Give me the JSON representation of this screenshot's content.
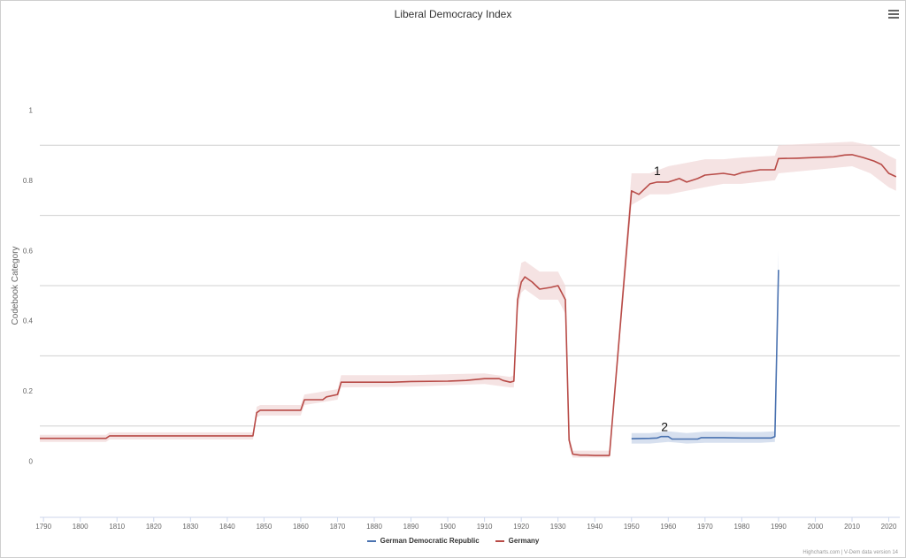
{
  "chart_data": {
    "type": "line",
    "title": "Liberal Democracy Index",
    "ylabel": "Codebook Category",
    "xlabel": "",
    "xlim": [
      1789,
      2023
    ],
    "ylim": [
      -0.16,
      1.16
    ],
    "yticks": [
      0,
      0.2,
      0.4,
      0.6,
      0.8,
      1
    ],
    "ytick_labels": [
      "0",
      "0.2",
      "0.4",
      "0.6",
      "0.8",
      "1"
    ],
    "ygridlines": [
      0.1,
      0.3,
      0.5,
      0.7,
      0.9
    ],
    "xticks": [
      1790,
      1800,
      1810,
      1820,
      1830,
      1840,
      1850,
      1860,
      1870,
      1880,
      1890,
      1900,
      1910,
      1920,
      1930,
      1940,
      1950,
      1960,
      1970,
      1980,
      1990,
      2000,
      2010,
      2020
    ],
    "xtick_labels": [
      "1790",
      "1800",
      "1810",
      "1820",
      "1830",
      "1840",
      "1850",
      "1860",
      "1870",
      "1880",
      "1890",
      "1900",
      "1910",
      "1920",
      "1930",
      "1940",
      "1950",
      "1960",
      "1970",
      "1980",
      "1990",
      "2000",
      "2010",
      "2020"
    ],
    "grid": true,
    "legend_placement": "bottom-center",
    "series": [
      {
        "name": "German Democratic Republic",
        "color": "#4a72b0",
        "band_color": "#c9d6ea",
        "points": [
          [
            1950,
            0.064
          ],
          [
            1955,
            0.065
          ],
          [
            1957,
            0.066
          ],
          [
            1958,
            0.07
          ],
          [
            1960,
            0.07
          ],
          [
            1961,
            0.063
          ],
          [
            1965,
            0.063
          ],
          [
            1968,
            0.063
          ],
          [
            1969,
            0.067
          ],
          [
            1975,
            0.067
          ],
          [
            1980,
            0.066
          ],
          [
            1985,
            0.066
          ],
          [
            1988,
            0.066
          ],
          [
            1989,
            0.07
          ],
          [
            1990,
            0.545
          ]
        ],
        "band": [
          [
            1950,
            0.05,
            0.08
          ],
          [
            1955,
            0.05,
            0.08
          ],
          [
            1960,
            0.055,
            0.085
          ],
          [
            1965,
            0.05,
            0.08
          ],
          [
            1970,
            0.052,
            0.084
          ],
          [
            1975,
            0.052,
            0.084
          ],
          [
            1980,
            0.052,
            0.083
          ],
          [
            1985,
            0.052,
            0.083
          ],
          [
            1989,
            0.055,
            0.085
          ],
          [
            1990,
            0.5,
            0.6
          ]
        ],
        "annotation": "2",
        "annotation_at": [
          1959,
          0.085
        ]
      },
      {
        "name": "Germany",
        "color": "#b84b47",
        "band_color": "#f2dada",
        "points": [
          [
            1789,
            0.065
          ],
          [
            1807,
            0.065
          ],
          [
            1808,
            0.072
          ],
          [
            1846,
            0.072
          ],
          [
            1847,
            0.072
          ],
          [
            1848,
            0.138
          ],
          [
            1849,
            0.145
          ],
          [
            1850,
            0.145
          ],
          [
            1860,
            0.145
          ],
          [
            1861,
            0.175
          ],
          [
            1866,
            0.175
          ],
          [
            1867,
            0.183
          ],
          [
            1870,
            0.19
          ],
          [
            1871,
            0.225
          ],
          [
            1880,
            0.225
          ],
          [
            1885,
            0.225
          ],
          [
            1890,
            0.227
          ],
          [
            1900,
            0.228
          ],
          [
            1905,
            0.23
          ],
          [
            1910,
            0.235
          ],
          [
            1914,
            0.235
          ],
          [
            1915,
            0.23
          ],
          [
            1917,
            0.225
          ],
          [
            1918,
            0.228
          ],
          [
            1919,
            0.46
          ],
          [
            1920,
            0.51
          ],
          [
            1921,
            0.525
          ],
          [
            1923,
            0.51
          ],
          [
            1925,
            0.49
          ],
          [
            1928,
            0.495
          ],
          [
            1930,
            0.5
          ],
          [
            1932,
            0.46
          ],
          [
            1933,
            0.06
          ],
          [
            1934,
            0.02
          ],
          [
            1936,
            0.017
          ],
          [
            1938,
            0.017
          ],
          [
            1940,
            0.016
          ],
          [
            1944,
            0.016
          ],
          [
            1950,
            0.77
          ],
          [
            1952,
            0.76
          ],
          [
            1955,
            0.79
          ],
          [
            1957,
            0.795
          ],
          [
            1960,
            0.795
          ],
          [
            1963,
            0.805
          ],
          [
            1965,
            0.795
          ],
          [
            1968,
            0.805
          ],
          [
            1970,
            0.815
          ],
          [
            1975,
            0.82
          ],
          [
            1978,
            0.815
          ],
          [
            1980,
            0.822
          ],
          [
            1985,
            0.83
          ],
          [
            1989,
            0.83
          ],
          [
            1990,
            0.862
          ],
          [
            1995,
            0.863
          ],
          [
            2000,
            0.865
          ],
          [
            2005,
            0.867
          ],
          [
            2008,
            0.872
          ],
          [
            2010,
            0.873
          ],
          [
            2013,
            0.865
          ],
          [
            2016,
            0.855
          ],
          [
            2018,
            0.845
          ],
          [
            2020,
            0.82
          ],
          [
            2022,
            0.81
          ]
        ],
        "band": [
          [
            1789,
            0.055,
            0.075
          ],
          [
            1807,
            0.055,
            0.075
          ],
          [
            1808,
            0.062,
            0.082
          ],
          [
            1847,
            0.062,
            0.082
          ],
          [
            1848,
            0.125,
            0.155
          ],
          [
            1849,
            0.13,
            0.16
          ],
          [
            1860,
            0.13,
            0.16
          ],
          [
            1861,
            0.16,
            0.19
          ],
          [
            1870,
            0.175,
            0.205
          ],
          [
            1871,
            0.21,
            0.245
          ],
          [
            1890,
            0.212,
            0.245
          ],
          [
            1910,
            0.22,
            0.25
          ],
          [
            1917,
            0.21,
            0.24
          ],
          [
            1918,
            0.21,
            0.245
          ],
          [
            1919,
            0.43,
            0.5
          ],
          [
            1920,
            0.48,
            0.565
          ],
          [
            1921,
            0.49,
            0.57
          ],
          [
            1925,
            0.46,
            0.54
          ],
          [
            1930,
            0.46,
            0.54
          ],
          [
            1932,
            0.42,
            0.5
          ],
          [
            1933,
            0.04,
            0.08
          ],
          [
            1934,
            0.01,
            0.03
          ],
          [
            1944,
            0.01,
            0.03
          ],
          [
            1950,
            0.73,
            0.82
          ],
          [
            1955,
            0.76,
            0.82
          ],
          [
            1960,
            0.76,
            0.84
          ],
          [
            1965,
            0.77,
            0.85
          ],
          [
            1970,
            0.78,
            0.86
          ],
          [
            1975,
            0.79,
            0.86
          ],
          [
            1980,
            0.79,
            0.865
          ],
          [
            1989,
            0.8,
            0.87
          ],
          [
            1990,
            0.82,
            0.9
          ],
          [
            2000,
            0.83,
            0.905
          ],
          [
            2010,
            0.84,
            0.91
          ],
          [
            2015,
            0.82,
            0.9
          ],
          [
            2020,
            0.78,
            0.87
          ],
          [
            2022,
            0.77,
            0.86
          ]
        ],
        "annotation": "1",
        "annotation_at": [
          1957,
          0.815
        ]
      }
    ]
  },
  "legend": {
    "items": [
      {
        "label": "German Democratic Republic",
        "color": "#4a72b0"
      },
      {
        "label": "Germany",
        "color": "#b84b47"
      }
    ]
  },
  "credit": "Highcharts.com | V-Dem data version 14",
  "menu_icon": "hamburger-menu-icon"
}
